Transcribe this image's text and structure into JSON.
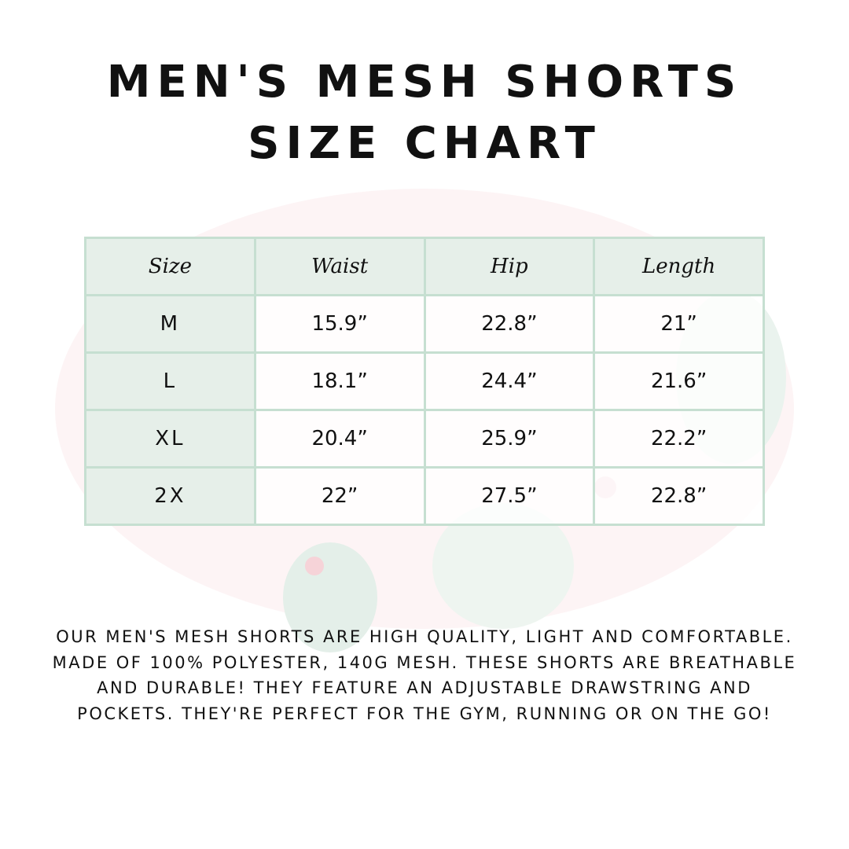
{
  "title": {
    "line1": "Men's Mesh Shorts",
    "line2": "Size Chart"
  },
  "table": {
    "headers": [
      "Size",
      "Waist",
      "Hip",
      "Length"
    ],
    "rows": [
      [
        "M",
        "15.9”",
        "22.8”",
        "21”"
      ],
      [
        "L",
        "18.1”",
        "24.4”",
        "21.6”"
      ],
      [
        "XL",
        "20.4”",
        "25.9”",
        "22.2”"
      ],
      [
        "2X",
        "22”",
        "27.5”",
        "22.8”"
      ]
    ]
  },
  "description": "Our men's mesh shorts are high quality, light and comfortable. Made of 100% polyester, 140g mesh. These shorts are breathable and durable! They feature an adjustable drawstring and pockets. They're perfect for the gym, running or on the go!",
  "colors": {
    "header_bg": "#e6efe9",
    "border": "#c6dfd1",
    "text": "#111111"
  }
}
